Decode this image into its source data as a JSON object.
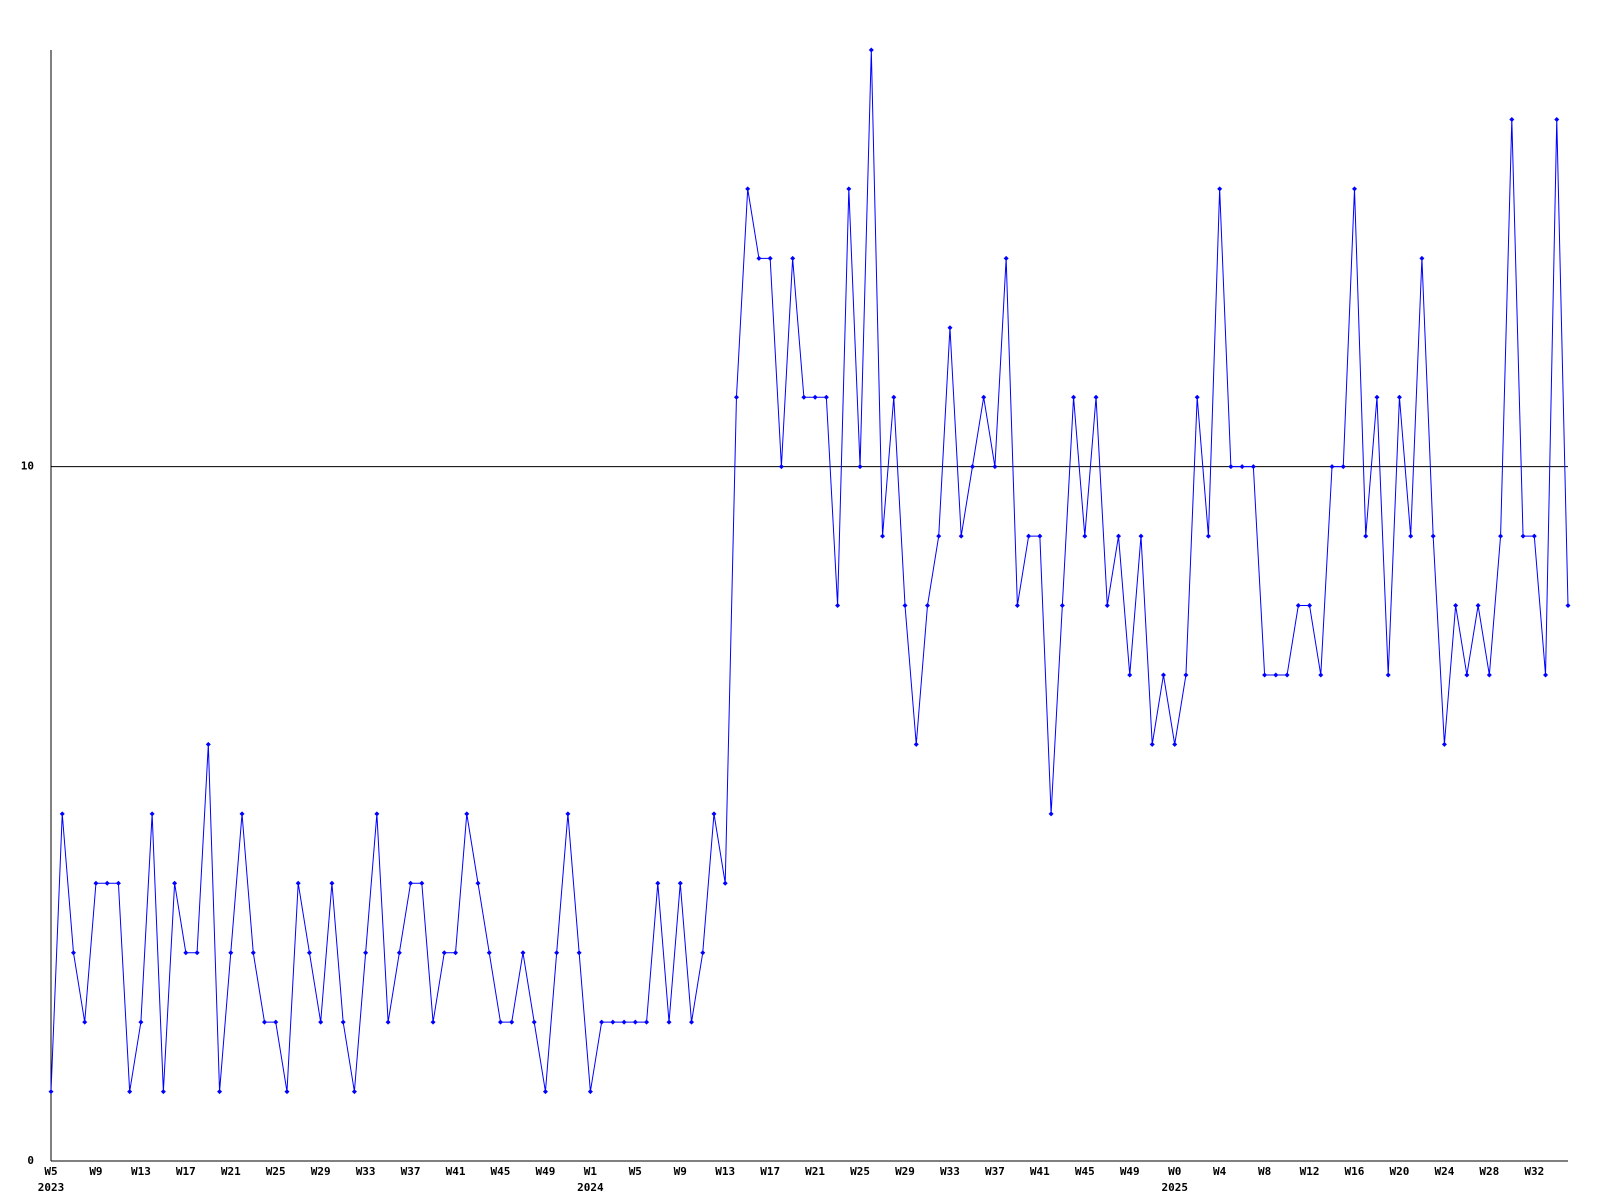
{
  "chart_data": {
    "type": "line",
    "categories": [
      "W5",
      null,
      null,
      null,
      "W9",
      null,
      null,
      null,
      "W13",
      null,
      null,
      null,
      "W17",
      null,
      null,
      null,
      "W21",
      null,
      null,
      null,
      "W25",
      null,
      null,
      null,
      "W29",
      null,
      null,
      null,
      "W33",
      null,
      null,
      null,
      "W37",
      null,
      null,
      null,
      "W41",
      null,
      null,
      null,
      "W45",
      null,
      null,
      null,
      "W49",
      null,
      null,
      null,
      "W1",
      null,
      null,
      null,
      "W5",
      null,
      null,
      null,
      "W9",
      null,
      null,
      null,
      "W13",
      null,
      null,
      null,
      "W17",
      null,
      null,
      null,
      "W21",
      null,
      null,
      null,
      "W25",
      null,
      null,
      null,
      "W29",
      null,
      null,
      null,
      "W33",
      null,
      null,
      null,
      "W37",
      null,
      null,
      null,
      "W41",
      null,
      null,
      null,
      "W45",
      null,
      null,
      null,
      "W49",
      null,
      null,
      null,
      "W0",
      null,
      null,
      null,
      "W4",
      null,
      null,
      null,
      "W8",
      null,
      null,
      null,
      "W12",
      null,
      null,
      null,
      "W16",
      null,
      null,
      null,
      "W20",
      null,
      null,
      null,
      "W24",
      null,
      null,
      null,
      "W28",
      null,
      null,
      null,
      "W32",
      null,
      null,
      null
    ],
    "x_years": [
      "2023",
      null,
      null,
      null,
      null,
      null,
      null,
      null,
      null,
      null,
      null,
      null,
      null,
      null,
      null,
      null,
      null,
      null,
      null,
      null,
      null,
      null,
      null,
      null,
      null,
      null,
      null,
      null,
      null,
      null,
      null,
      null,
      null,
      null,
      null,
      null,
      null,
      null,
      null,
      null,
      null,
      null,
      null,
      null,
      null,
      null,
      null,
      null,
      "2024",
      null,
      null,
      null,
      null,
      null,
      null,
      null,
      null,
      null,
      null,
      null,
      null,
      null,
      null,
      null,
      null,
      null,
      null,
      null,
      null,
      null,
      null,
      null,
      null,
      null,
      null,
      null,
      null,
      null,
      null,
      null,
      null,
      null,
      null,
      null,
      null,
      null,
      null,
      null,
      null,
      null,
      null,
      null,
      null,
      null,
      null,
      null,
      null,
      null,
      null,
      null,
      "2025",
      null,
      null,
      null,
      null,
      null,
      null,
      null,
      null,
      null,
      null,
      null,
      null,
      null,
      null,
      null,
      null,
      null,
      null,
      null,
      null,
      null,
      null,
      null,
      null,
      null,
      null,
      null,
      null,
      null,
      null,
      null,
      null,
      null,
      null,
      null
    ],
    "series": [
      {
        "color": "#0000ff",
        "values": [
          1,
          5,
          3,
          2,
          4,
          4,
          4,
          1,
          2,
          5,
          1,
          4,
          3,
          3,
          6,
          1,
          3,
          5,
          3,
          2,
          2,
          1,
          4,
          3,
          2,
          4,
          2,
          1,
          3,
          5,
          2,
          3,
          4,
          4,
          2,
          3,
          3,
          5,
          4,
          3,
          2,
          2,
          3,
          2,
          1,
          3,
          5,
          3,
          1,
          2,
          2,
          2,
          2,
          2,
          4,
          2,
          4,
          2,
          3,
          5,
          4,
          11,
          14,
          13,
          13,
          10,
          13,
          11,
          11,
          11,
          8,
          14,
          10,
          16,
          9,
          11,
          8,
          6,
          8,
          9,
          12,
          9,
          10,
          11,
          10,
          13,
          8,
          9,
          9,
          5,
          8,
          11,
          9,
          11,
          8,
          9,
          7,
          9,
          6,
          7,
          6,
          7,
          11,
          9,
          14,
          10,
          10,
          10,
          7,
          7,
          7,
          8,
          8,
          7,
          10,
          10,
          14,
          9,
          11,
          7,
          11,
          9,
          13,
          9,
          6,
          8,
          7,
          8,
          7,
          9,
          15,
          9,
          9,
          7,
          15,
          8
        ]
      }
    ],
    "ylim": [
      0,
      16
    ],
    "yticks": [
      0,
      10
    ],
    "grid": true
  }
}
